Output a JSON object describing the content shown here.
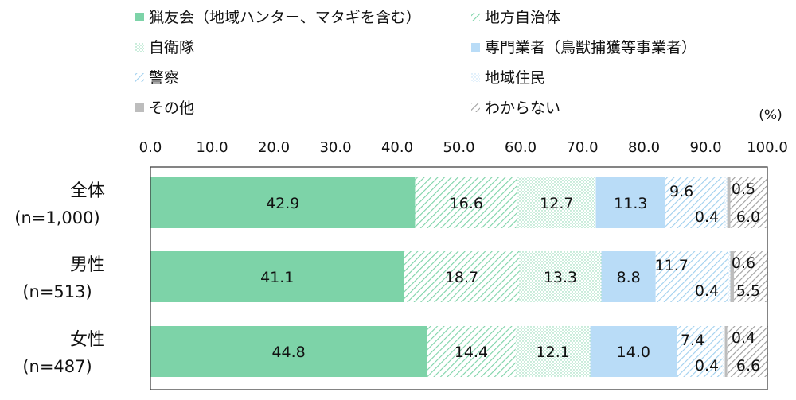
{
  "chart_data": {
    "type": "bar",
    "orientation": "horizontal",
    "stacked": true,
    "unit": "(%)",
    "xlim": [
      0,
      100
    ],
    "ticks": [
      "0.0",
      "10.0",
      "20.0",
      "30.0",
      "40.0",
      "50.0",
      "60.0",
      "70.0",
      "80.0",
      "90.0",
      "100.0"
    ],
    "categories": [
      {
        "name": "全体",
        "n": "(n=1,000)"
      },
      {
        "name": "男性",
        "n": "(n=513)"
      },
      {
        "name": "女性",
        "n": "(n=487)"
      }
    ],
    "series": [
      {
        "name": "猟友会（地域ハンター、マタギを含む）",
        "values": [
          42.9,
          41.1,
          44.8
        ],
        "color": "#7dd3a8",
        "pattern": "solid"
      },
      {
        "name": "地方自治体",
        "values": [
          16.6,
          18.7,
          14.4
        ],
        "color": "#7dd3a8",
        "pattern": "diagonal"
      },
      {
        "name": "自衛隊",
        "values": [
          12.7,
          13.3,
          12.1
        ],
        "color": "#7dd3a8",
        "pattern": "dots"
      },
      {
        "name": "専門業者（鳥獣捕獲等事業者）",
        "values": [
          11.3,
          8.8,
          14.0
        ],
        "color": "#b9dcf7",
        "pattern": "solid"
      },
      {
        "name": "警察",
        "values": [
          9.6,
          11.7,
          7.4
        ],
        "color": "#9fcfee",
        "pattern": "diagonal"
      },
      {
        "name": "地域住民",
        "values": [
          0.4,
          0.4,
          0.4
        ],
        "color": "#b9dcf7",
        "pattern": "dots"
      },
      {
        "name": "その他",
        "values": [
          0.5,
          0.6,
          0.4
        ],
        "color": "#bdbdbd",
        "pattern": "solid"
      },
      {
        "name": "わからない",
        "values": [
          6.0,
          5.5,
          6.6
        ],
        "color": "#9e9e9e",
        "pattern": "diagonal"
      }
    ],
    "legend_position": "top",
    "grid": false
  }
}
